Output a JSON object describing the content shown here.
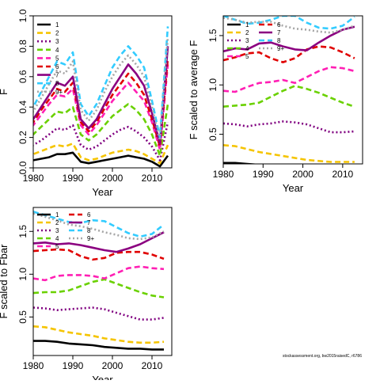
{
  "credit": "stockassessment.org, bw2015raisedC, r6786",
  "chart_data": [
    {
      "type": "line",
      "xlabel": "Year",
      "ylabel": "F",
      "xlim": [
        1980,
        2015
      ],
      "ylim": [
        0,
        1.0
      ],
      "xticks": [
        "1980",
        "1990",
        "2000",
        "2010"
      ],
      "yticks": [
        "0.0",
        "0.2",
        "0.4",
        "0.6",
        "0.8",
        "1.0"
      ],
      "legend_position": "top-left",
      "x": [
        1978,
        1980,
        1982,
        1984,
        1986,
        1988,
        1990,
        1992,
        1994,
        1996,
        1998,
        2000,
        2002,
        2004,
        2006,
        2008,
        2010,
        2012,
        2014
      ],
      "series": [
        {
          "name": "1",
          "color": "#000000",
          "dash": "solid",
          "values": [
            0.06,
            0.05,
            0.06,
            0.07,
            0.09,
            0.09,
            0.1,
            0.04,
            0.03,
            0.04,
            0.05,
            0.06,
            0.07,
            0.08,
            0.07,
            0.06,
            0.04,
            0.01,
            0.08
          ]
        },
        {
          "name": "2",
          "color": "#f5c400",
          "dash": "dash",
          "values": [
            0.1,
            0.09,
            0.11,
            0.13,
            0.15,
            0.14,
            0.16,
            0.07,
            0.05,
            0.06,
            0.08,
            0.1,
            0.11,
            0.12,
            0.11,
            0.09,
            0.06,
            0.03,
            0.15
          ]
        },
        {
          "name": "3",
          "color": "#800080",
          "dash": "dot",
          "values": [
            0.18,
            0.15,
            0.18,
            0.22,
            0.26,
            0.25,
            0.28,
            0.15,
            0.12,
            0.14,
            0.18,
            0.22,
            0.25,
            0.27,
            0.24,
            0.2,
            0.14,
            0.05,
            0.3
          ]
        },
        {
          "name": "4",
          "color": "#6ad100",
          "dash": "dash",
          "values": [
            0.26,
            0.22,
            0.27,
            0.32,
            0.37,
            0.36,
            0.4,
            0.22,
            0.18,
            0.22,
            0.28,
            0.34,
            0.38,
            0.42,
            0.38,
            0.32,
            0.22,
            0.08,
            0.42
          ]
        },
        {
          "name": "5",
          "color": "#ff1fb4",
          "dash": "dash",
          "values": [
            0.33,
            0.28,
            0.35,
            0.42,
            0.48,
            0.47,
            0.52,
            0.28,
            0.22,
            0.28,
            0.36,
            0.44,
            0.5,
            0.56,
            0.5,
            0.44,
            0.3,
            0.12,
            0.68
          ]
        },
        {
          "name": "6",
          "color": "#e00000",
          "dash": "dash",
          "values": [
            0.36,
            0.3,
            0.38,
            0.45,
            0.52,
            0.5,
            0.56,
            0.3,
            0.24,
            0.3,
            0.39,
            0.48,
            0.55,
            0.62,
            0.56,
            0.48,
            0.32,
            0.14,
            0.72
          ]
        },
        {
          "name": "7",
          "color": "#8b0080",
          "dash": "solid",
          "values": [
            0.38,
            0.32,
            0.4,
            0.48,
            0.56,
            0.54,
            0.6,
            0.32,
            0.26,
            0.32,
            0.42,
            0.52,
            0.6,
            0.68,
            0.62,
            0.54,
            0.36,
            0.16,
            0.8
          ]
        },
        {
          "name": "8",
          "color": "#33ccff",
          "dash": "dash",
          "values": [
            0.48,
            0.4,
            0.5,
            0.6,
            0.7,
            0.68,
            0.76,
            0.42,
            0.34,
            0.42,
            0.54,
            0.66,
            0.74,
            0.8,
            0.74,
            0.66,
            0.44,
            0.2,
            0.93
          ]
        },
        {
          "name": "9+",
          "color": "#a6a6a6",
          "dash": "dot",
          "values": [
            0.44,
            0.37,
            0.46,
            0.55,
            0.64,
            0.62,
            0.7,
            0.38,
            0.31,
            0.38,
            0.5,
            0.6,
            0.68,
            0.74,
            0.68,
            0.6,
            0.4,
            0.18,
            0.86
          ]
        }
      ]
    },
    {
      "type": "line",
      "xlabel": "Year",
      "ylabel": "F scaled to average F",
      "xlim": [
        1980,
        2015
      ],
      "ylim": [
        0.2,
        1.7
      ],
      "xticks": [
        "1980",
        "1990",
        "2000",
        "2010"
      ],
      "yticks": [
        "0.5",
        "1.0",
        "1.5"
      ],
      "legend_position": "top-left",
      "x": [
        1980,
        1983,
        1986,
        1989,
        1992,
        1995,
        1998,
        2001,
        2004,
        2007,
        2010,
        2013
      ],
      "series": [
        {
          "name": "1",
          "color": "#000000",
          "dash": "solid",
          "values": [
            0.21,
            0.21,
            0.2,
            0.19,
            0.18,
            0.17,
            0.16,
            0.15,
            0.14,
            0.14,
            0.13,
            0.13
          ]
        },
        {
          "name": "2",
          "color": "#f5c400",
          "dash": "dash",
          "values": [
            0.39,
            0.38,
            0.35,
            0.32,
            0.3,
            0.28,
            0.26,
            0.24,
            0.23,
            0.22,
            0.22,
            0.22
          ]
        },
        {
          "name": "3",
          "color": "#800080",
          "dash": "dot",
          "values": [
            0.61,
            0.6,
            0.58,
            0.6,
            0.61,
            0.63,
            0.62,
            0.6,
            0.56,
            0.52,
            0.52,
            0.53
          ]
        },
        {
          "name": "4",
          "color": "#6ad100",
          "dash": "dash",
          "values": [
            0.78,
            0.79,
            0.8,
            0.82,
            0.88,
            0.94,
            0.99,
            0.96,
            0.92,
            0.87,
            0.82,
            0.78
          ]
        },
        {
          "name": "5",
          "color": "#ff1fb4",
          "dash": "dash",
          "values": [
            0.94,
            0.93,
            0.98,
            1.02,
            1.03,
            1.05,
            1.02,
            1.08,
            1.14,
            1.18,
            1.17,
            1.14
          ]
        },
        {
          "name": "6",
          "color": "#e00000",
          "dash": "dash",
          "values": [
            1.25,
            1.28,
            1.32,
            1.33,
            1.27,
            1.23,
            1.27,
            1.36,
            1.39,
            1.38,
            1.33,
            1.27
          ]
        },
        {
          "name": "7",
          "color": "#8b0080",
          "dash": "solid",
          "values": [
            1.34,
            1.37,
            1.36,
            1.42,
            1.43,
            1.39,
            1.36,
            1.35,
            1.43,
            1.5,
            1.56,
            1.59
          ]
        },
        {
          "name": "8",
          "color": "#33ccff",
          "dash": "dash",
          "values": [
            1.7,
            1.66,
            1.62,
            1.63,
            1.66,
            1.7,
            1.7,
            1.63,
            1.58,
            1.57,
            1.6,
            1.69
          ]
        },
        {
          "name": "9+",
          "color": "#a6a6a6",
          "dash": "dot",
          "values": [
            1.68,
            1.66,
            1.63,
            1.64,
            1.64,
            1.6,
            1.57,
            1.56,
            1.54,
            1.53,
            1.56,
            1.6
          ]
        }
      ]
    },
    {
      "type": "line",
      "xlabel": "Year",
      "ylabel": "F scaled to Fbar",
      "xlim": [
        1980,
        2015
      ],
      "ylim": [
        0.05,
        1.78
      ],
      "xticks": [
        "1980",
        "1990",
        "2000",
        "2010"
      ],
      "yticks": [
        "0.5",
        "1.0",
        "1.5"
      ],
      "legend_position": "top-left",
      "x": [
        1980,
        1983,
        1986,
        1989,
        1992,
        1995,
        1998,
        2001,
        2004,
        2007,
        2010,
        2013
      ],
      "series": [
        {
          "name": "1",
          "color": "#000000",
          "dash": "solid",
          "values": [
            0.22,
            0.22,
            0.21,
            0.19,
            0.18,
            0.17,
            0.15,
            0.14,
            0.13,
            0.13,
            0.12,
            0.12
          ]
        },
        {
          "name": "2",
          "color": "#f5c400",
          "dash": "dash",
          "values": [
            0.39,
            0.38,
            0.35,
            0.32,
            0.3,
            0.28,
            0.25,
            0.23,
            0.21,
            0.2,
            0.2,
            0.21
          ]
        },
        {
          "name": "3",
          "color": "#800080",
          "dash": "dot",
          "values": [
            0.61,
            0.6,
            0.58,
            0.59,
            0.6,
            0.61,
            0.59,
            0.55,
            0.51,
            0.47,
            0.47,
            0.49
          ]
        },
        {
          "name": "4",
          "color": "#6ad100",
          "dash": "dash",
          "values": [
            0.78,
            0.79,
            0.79,
            0.81,
            0.86,
            0.91,
            0.94,
            0.89,
            0.84,
            0.79,
            0.75,
            0.73
          ]
        },
        {
          "name": "5",
          "color": "#ff1fb4",
          "dash": "dash",
          "values": [
            0.95,
            0.93,
            0.98,
            0.99,
            0.99,
            0.98,
            0.95,
            1.01,
            1.07,
            1.09,
            1.07,
            1.06
          ]
        },
        {
          "name": "6",
          "color": "#e00000",
          "dash": "dash",
          "values": [
            1.27,
            1.28,
            1.29,
            1.28,
            1.21,
            1.17,
            1.19,
            1.25,
            1.26,
            1.26,
            1.23,
            1.18
          ]
        },
        {
          "name": "7",
          "color": "#8b0080",
          "dash": "solid",
          "values": [
            1.36,
            1.37,
            1.35,
            1.36,
            1.34,
            1.31,
            1.28,
            1.26,
            1.3,
            1.35,
            1.42,
            1.49
          ]
        },
        {
          "name": "8",
          "color": "#33ccff",
          "dash": "dash",
          "values": [
            1.73,
            1.69,
            1.65,
            1.61,
            1.6,
            1.63,
            1.62,
            1.55,
            1.48,
            1.44,
            1.47,
            1.58
          ]
        },
        {
          "name": "9+",
          "color": "#a6a6a6",
          "dash": "dot",
          "values": [
            1.71,
            1.67,
            1.63,
            1.58,
            1.56,
            1.53,
            1.49,
            1.46,
            1.42,
            1.41,
            1.43,
            1.5
          ]
        }
      ]
    }
  ]
}
